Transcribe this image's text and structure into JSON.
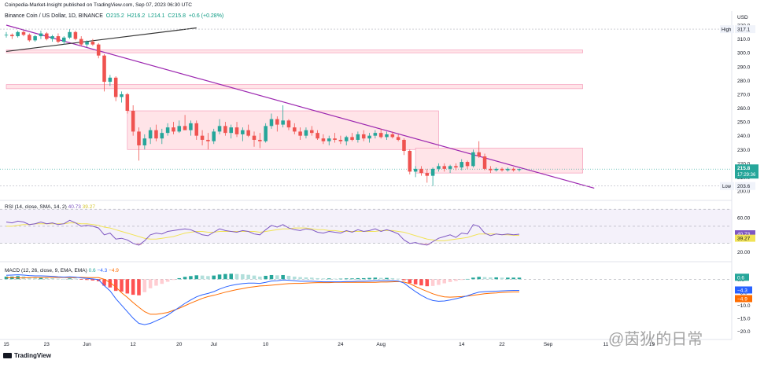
{
  "header": {
    "publisher_line": "Coinpedia-Market-Insight published on TradingView.com, Sep 07, 2023 06:30 UTC"
  },
  "symbol": {
    "name": "Binance Coin / US Dollar, 1D, BINANCE",
    "o": "O215.2",
    "h": "H216.2",
    "l": "L214.1",
    "c": "C215.8",
    "change": "+0.6 (+0.28%)"
  },
  "colors": {
    "up": "#26a69a",
    "down": "#ef5350",
    "trendline": "#9c27b0",
    "zone_fill": "#ffe4e8",
    "rsi_line": "#7e57c2",
    "rsi_ma": "#f1e356",
    "macd_line": "#2962ff",
    "signal_line": "#ff6d00"
  },
  "price_axis": {
    "currency": "USD",
    "ticks": [
      "320.0",
      "310.0",
      "300.0",
      "290.0",
      "280.0",
      "270.0",
      "260.0",
      "250.0",
      "240.0",
      "230.0",
      "220.0",
      "210.0",
      "200.0"
    ],
    "high_label": "High",
    "high_value": "317.1",
    "low_label": "Low",
    "low_value": "203.6",
    "last_price": "215.8",
    "countdown": "17:29:36"
  },
  "rsi_panel": {
    "label": "RSI (14, close, SMA, 14, 2)",
    "value_rsi": "40.73",
    "value_ma": "39.27",
    "ticks": [
      "60.00",
      "40.00",
      "20.00"
    ]
  },
  "macd_panel": {
    "label": "MACD (12, 26, close, 9, EMA, EMA)",
    "hist_value": "0.6",
    "macd_value": "−4.3",
    "signal_value": "−4.9",
    "ticks": [
      "0.0",
      "−5.0",
      "−10.0",
      "−15.0",
      "−20.0"
    ]
  },
  "time_axis": {
    "ticks": [
      "15",
      "23",
      "Jun",
      "12",
      "20",
      "Jul",
      "10",
      "24",
      "Aug",
      "14",
      "22",
      "Sep",
      "11",
      "19"
    ]
  },
  "footer": {
    "brand": "TradingView",
    "watermark": "@茵狄的日常"
  },
  "chart_data": {
    "type": "candlestick",
    "title": "Binance Coin / US Dollar, 1D, BINANCE",
    "ylim": [
      200,
      320
    ],
    "high": 317.1,
    "low": 203.6,
    "last": 215.8,
    "candles": [
      [
        313,
        315,
        311,
        313
      ],
      [
        313,
        314,
        310,
        312
      ],
      [
        312,
        316,
        311,
        315
      ],
      [
        315,
        316,
        312,
        313
      ],
      [
        313,
        314,
        308,
        309
      ],
      [
        309,
        313,
        308,
        312
      ],
      [
        312,
        316,
        310,
        314
      ],
      [
        314,
        315,
        309,
        310
      ],
      [
        310,
        313,
        308,
        312
      ],
      [
        312,
        314,
        307,
        308
      ],
      [
        308,
        312,
        306,
        311
      ],
      [
        311,
        317,
        310,
        315
      ],
      [
        315,
        316,
        309,
        310
      ],
      [
        310,
        312,
        305,
        306
      ],
      [
        306,
        309,
        304,
        308
      ],
      [
        308,
        310,
        305,
        306
      ],
      [
        306,
        307,
        296,
        298
      ],
      [
        298,
        299,
        272,
        279
      ],
      [
        279,
        284,
        276,
        282
      ],
      [
        282,
        283,
        265,
        268
      ],
      [
        268,
        272,
        264,
        270
      ],
      [
        270,
        271,
        256,
        258
      ],
      [
        258,
        262,
        240,
        243
      ],
      [
        243,
        246,
        222,
        233
      ],
      [
        233,
        241,
        230,
        238
      ],
      [
        238,
        246,
        234,
        244
      ],
      [
        244,
        248,
        236,
        238
      ],
      [
        238,
        245,
        234,
        242
      ],
      [
        242,
        249,
        240,
        246
      ],
      [
        246,
        250,
        241,
        243
      ],
      [
        243,
        251,
        242,
        247
      ],
      [
        247,
        255,
        245,
        244
      ],
      [
        244,
        251,
        240,
        249
      ],
      [
        249,
        251,
        237,
        240
      ],
      [
        240,
        244,
        233,
        237
      ],
      [
        237,
        242,
        230,
        236
      ],
      [
        236,
        245,
        234,
        243
      ],
      [
        243,
        252,
        241,
        247
      ],
      [
        247,
        250,
        240,
        242
      ],
      [
        242,
        248,
        238,
        246
      ],
      [
        246,
        250,
        239,
        241
      ],
      [
        241,
        246,
        236,
        244
      ],
      [
        244,
        248,
        239,
        240
      ],
      [
        240,
        243,
        232,
        237
      ],
      [
        237,
        242,
        231,
        236
      ],
      [
        236,
        249,
        235,
        247
      ],
      [
        247,
        256,
        245,
        252
      ],
      [
        252,
        254,
        243,
        248
      ],
      [
        248,
        262,
        246,
        251
      ],
      [
        251,
        252,
        244,
        246
      ],
      [
        246,
        249,
        241,
        243
      ],
      [
        243,
        246,
        237,
        240
      ],
      [
        240,
        246,
        238,
        244
      ],
      [
        244,
        247,
        240,
        242
      ],
      [
        242,
        244,
        237,
        238
      ],
      [
        238,
        241,
        234,
        236
      ],
      [
        236,
        240,
        233,
        238
      ],
      [
        238,
        242,
        235,
        237
      ],
      [
        237,
        240,
        234,
        236
      ],
      [
        236,
        240,
        233,
        239
      ],
      [
        239,
        242,
        236,
        237
      ],
      [
        237,
        243,
        235,
        241
      ],
      [
        241,
        244,
        236,
        238
      ],
      [
        238,
        242,
        235,
        240
      ],
      [
        240,
        244,
        238,
        242
      ],
      [
        242,
        245,
        238,
        239
      ],
      [
        239,
        243,
        237,
        241
      ],
      [
        241,
        243,
        238,
        239
      ],
      [
        239,
        241,
        236,
        237
      ],
      [
        237,
        238,
        226,
        229
      ],
      [
        229,
        230,
        212,
        214
      ],
      [
        214,
        218,
        210,
        216
      ],
      [
        216,
        218,
        211,
        213
      ],
      [
        213,
        216,
        206,
        211
      ],
      [
        211,
        217,
        203.6,
        216
      ],
      [
        216,
        220,
        214,
        218
      ],
      [
        218,
        220,
        214,
        216
      ],
      [
        216,
        219,
        213,
        218
      ],
      [
        218,
        220,
        215,
        217
      ],
      [
        217,
        223,
        215,
        221
      ],
      [
        221,
        222,
        216,
        218
      ],
      [
        218,
        230,
        217,
        228
      ],
      [
        228,
        236,
        224,
        225
      ],
      [
        225,
        227,
        215,
        216
      ],
      [
        216,
        218,
        213,
        215
      ],
      [
        215,
        217,
        214,
        216
      ],
      [
        216,
        217,
        214,
        215
      ],
      [
        215,
        217,
        214,
        216
      ],
      [
        216,
        217,
        214,
        215
      ],
      [
        215.2,
        216.2,
        214.1,
        215.8
      ]
    ],
    "trendlines": [
      {
        "from": [
          0,
          320
        ],
        "to": [
          102,
          202
        ],
        "color": "#9c27b0"
      },
      {
        "from": [
          0,
          301
        ],
        "to": [
          33,
          318
        ],
        "color": "#333333"
      }
    ],
    "zones": [
      {
        "from": 0,
        "to": 100,
        "top": 302,
        "bottom": 300
      },
      {
        "from": 0,
        "to": 100,
        "top": 277,
        "bottom": 274
      },
      {
        "from": 21,
        "to": 75,
        "top": 258,
        "bottom": 230
      },
      {
        "from": 71,
        "to": 100,
        "top": 231,
        "bottom": 213
      }
    ],
    "rsi": [
      55,
      54,
      56,
      55,
      52,
      53,
      55,
      53,
      54,
      52,
      53,
      57,
      54,
      50,
      51,
      50,
      48,
      40,
      42,
      35,
      36,
      34,
      30,
      28,
      33,
      40,
      42,
      41,
      44,
      45,
      46,
      47,
      46,
      43,
      40,
      39,
      43,
      47,
      45,
      44,
      43,
      45,
      44,
      41,
      40,
      46,
      51,
      49,
      52,
      48,
      46,
      45,
      47,
      46,
      43,
      42,
      44,
      43,
      42,
      45,
      43,
      46,
      44,
      45,
      47,
      44,
      46,
      44,
      41,
      34,
      30,
      31,
      29,
      28,
      32,
      36,
      38,
      40,
      37,
      42,
      41,
      52,
      50,
      42,
      39,
      41,
      40,
      41,
      40,
      40.73
    ],
    "rsi_ma": [
      50,
      50,
      51,
      52,
      52,
      53,
      53,
      53,
      53,
      53,
      53,
      54,
      54,
      53,
      53,
      52,
      51,
      49,
      48,
      46,
      44,
      42,
      40,
      38,
      36,
      35,
      35,
      36,
      37,
      38,
      40,
      42,
      43,
      44,
      44,
      43,
      43,
      44,
      44,
      44,
      44,
      44,
      44,
      44,
      43,
      44,
      45,
      46,
      47,
      47,
      48,
      48,
      48,
      47,
      46,
      46,
      45,
      45,
      44,
      44,
      44,
      44,
      44,
      44,
      44,
      45,
      45,
      45,
      44,
      43,
      41,
      39,
      37,
      35,
      34,
      33,
      33,
      34,
      35,
      36,
      37,
      39,
      41,
      41,
      41,
      41,
      40,
      40,
      39.5,
      39.27
    ],
    "macd_hist": [
      1.0,
      1.0,
      1.2,
      1.1,
      0.8,
      0.6,
      0.7,
      0.5,
      0.4,
      0.2,
      0.1,
      0.3,
      0.2,
      -0.2,
      -0.3,
      -0.5,
      -0.8,
      -2.5,
      -3.2,
      -4.5,
      -4.8,
      -5.5,
      -6.0,
      -6.2,
      -5.0,
      -3.5,
      -2.5,
      -1.8,
      -1.0,
      -0.3,
      0.4,
      0.9,
      1.2,
      1.5,
      1.4,
      1.2,
      1.4,
      1.8,
      2.0,
      2.1,
      2.0,
      1.9,
      1.7,
      1.4,
      1.0,
      1.3,
      1.6,
      1.5,
      1.6,
      1.3,
      1.0,
      0.8,
      0.7,
      0.6,
      0.4,
      0.3,
      0.3,
      0.2,
      0.2,
      0.3,
      0.3,
      0.4,
      0.4,
      0.5,
      0.6,
      0.5,
      0.5,
      0.4,
      0.2,
      -0.4,
      -1.5,
      -2.0,
      -2.4,
      -2.7,
      -2.6,
      -2.2,
      -1.6,
      -1.1,
      -0.7,
      -0.3,
      0.1,
      0.6,
      0.9,
      0.8,
      0.7,
      0.7,
      0.6,
      0.6,
      0.6,
      0.6
    ],
    "macd": [
      1.5,
      1.6,
      1.7,
      1.6,
      1.4,
      1.3,
      1.3,
      1.2,
      1.1,
      0.9,
      0.8,
      0.9,
      0.8,
      0.5,
      0.3,
      0.1,
      -0.2,
      -2.5,
      -4.5,
      -7.5,
      -10.0,
      -12.5,
      -15.0,
      -17.0,
      -17.5,
      -17.0,
      -16.0,
      -15.0,
      -13.8,
      -12.3,
      -10.8,
      -9.3,
      -8.0,
      -6.8,
      -6.0,
      -5.5,
      -4.8,
      -3.8,
      -3.0,
      -2.4,
      -2.0,
      -1.7,
      -1.5,
      -1.5,
      -1.6,
      -1.2,
      -0.7,
      -0.6,
      -0.3,
      -0.4,
      -0.6,
      -0.8,
      -0.8,
      -0.8,
      -0.9,
      -1.0,
      -1.0,
      -1.0,
      -1.0,
      -0.9,
      -0.9,
      -0.8,
      -0.8,
      -0.7,
      -0.6,
      -0.6,
      -0.6,
      -0.6,
      -0.7,
      -1.5,
      -3.2,
      -4.8,
      -6.2,
      -7.4,
      -8.2,
      -8.5,
      -8.4,
      -8.0,
      -7.5,
      -7.0,
      -6.4,
      -5.6,
      -5.0,
      -4.8,
      -4.7,
      -4.6,
      -4.5,
      -4.4,
      -4.3,
      -4.3
    ],
    "signal": [
      0.5,
      0.6,
      0.5,
      0.5,
      0.6,
      0.7,
      0.6,
      0.7,
      0.7,
      0.7,
      0.7,
      0.6,
      0.6,
      0.7,
      0.6,
      0.6,
      0.6,
      0.0,
      -1.3,
      -3.0,
      -5.2,
      -7.0,
      -9.0,
      -10.8,
      -12.5,
      -13.5,
      -13.5,
      -13.2,
      -12.8,
      -12.0,
      -11.2,
      -10.2,
      -9.2,
      -8.3,
      -7.4,
      -6.7,
      -6.2,
      -5.6,
      -5.0,
      -4.5,
      -4.0,
      -3.6,
      -3.2,
      -2.9,
      -2.6,
      -2.5,
      -2.3,
      -2.1,
      -1.9,
      -1.7,
      -1.6,
      -1.6,
      -1.5,
      -1.4,
      -1.3,
      -1.3,
      -1.3,
      -1.2,
      -1.2,
      -1.2,
      -1.2,
      -1.2,
      -1.2,
      -1.2,
      -1.2,
      -1.1,
      -1.1,
      -1.0,
      -0.9,
      -1.1,
      -1.7,
      -2.8,
      -3.8,
      -4.7,
      -5.6,
      -6.3,
      -6.8,
      -6.9,
      -6.8,
      -6.7,
      -6.5,
      -6.2,
      -5.9,
      -5.6,
      -5.4,
      -5.3,
      -5.1,
      -5.0,
      -4.9,
      -4.9
    ]
  }
}
